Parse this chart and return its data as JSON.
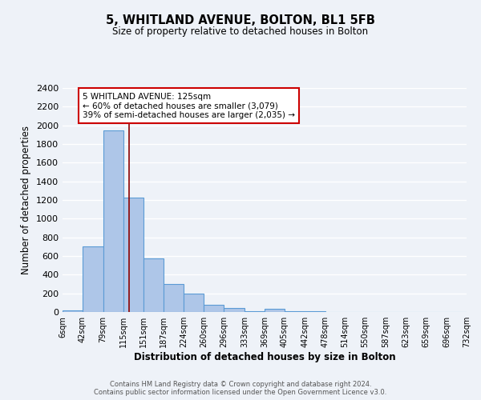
{
  "title": "5, WHITLAND AVENUE, BOLTON, BL1 5FB",
  "subtitle": "Size of property relative to detached houses in Bolton",
  "xlabel": "Distribution of detached houses by size in Bolton",
  "ylabel": "Number of detached properties",
  "bin_edges": [
    6,
    42,
    79,
    115,
    151,
    187,
    224,
    260,
    296,
    333,
    369,
    405,
    442,
    478,
    514,
    550,
    587,
    623,
    659,
    696,
    732
  ],
  "bin_labels": [
    "6sqm",
    "42sqm",
    "79sqm",
    "115sqm",
    "151sqm",
    "187sqm",
    "224sqm",
    "260sqm",
    "296sqm",
    "333sqm",
    "369sqm",
    "405sqm",
    "442sqm",
    "478sqm",
    "514sqm",
    "550sqm",
    "587sqm",
    "623sqm",
    "659sqm",
    "696sqm",
    "732sqm"
  ],
  "bar_heights": [
    15,
    700,
    1950,
    1230,
    575,
    300,
    200,
    80,
    45,
    10,
    35,
    10,
    5,
    2,
    0,
    0,
    0,
    0,
    0,
    0
  ],
  "bar_color": "#aec6e8",
  "bar_edgecolor": "#5b9bd5",
  "property_line_x": 125,
  "property_line_color": "#8b0000",
  "ylim": [
    0,
    2400
  ],
  "yticks": [
    0,
    200,
    400,
    600,
    800,
    1000,
    1200,
    1400,
    1600,
    1800,
    2000,
    2200,
    2400
  ],
  "annotation_text": "5 WHITLAND AVENUE: 125sqm\n← 60% of detached houses are smaller (3,079)\n39% of semi-detached houses are larger (2,035) →",
  "annotation_box_color": "#ffffff",
  "annotation_box_edgecolor": "#cc0000",
  "footer_text": "Contains HM Land Registry data © Crown copyright and database right 2024.\nContains public sector information licensed under the Open Government Licence v3.0.",
  "background_color": "#eef2f8",
  "grid_color": "#ffffff"
}
